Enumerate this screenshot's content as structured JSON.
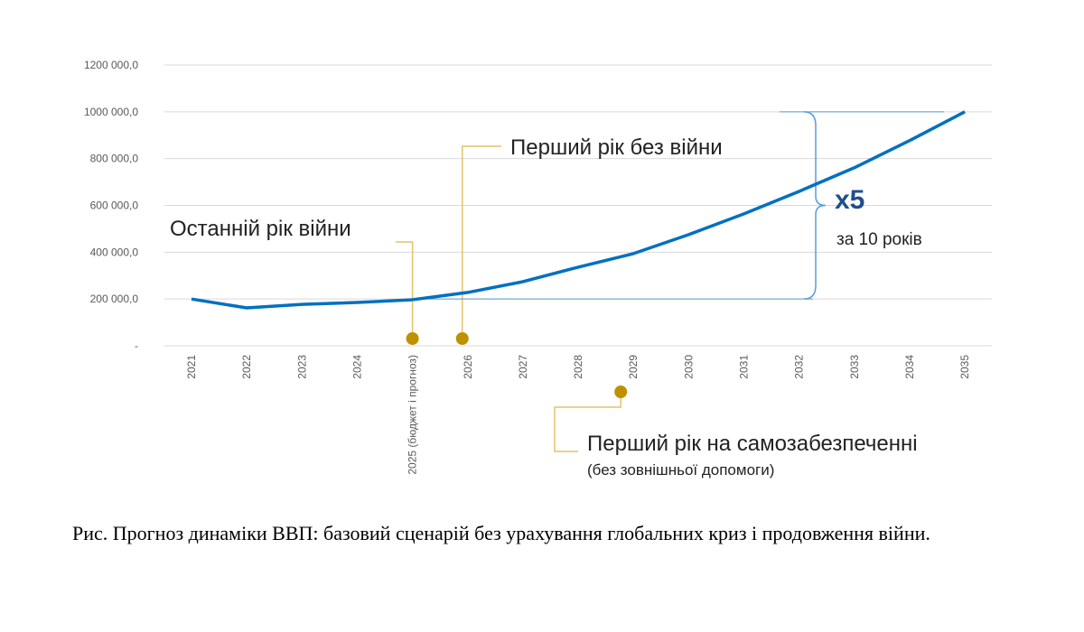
{
  "chart_data": {
    "type": "line",
    "title": "",
    "xlabel": "",
    "ylabel": "",
    "categories": [
      "2021",
      "2022",
      "2023",
      "2024",
      "2025 (бюджет і прогноз)",
      "2026",
      "2027",
      "2028",
      "2029",
      "2030",
      "2031",
      "2032",
      "2033",
      "2034",
      "2035"
    ],
    "series": [
      {
        "name": "ВВП",
        "values": [
          200000,
          162000,
          177000,
          185000,
          197000,
          228000,
          274000,
          336000,
          394000,
          475000,
          564000,
          660000,
          761000,
          877000,
          1000000
        ],
        "color": "#0070C0"
      }
    ],
    "ylim": [
      0,
      1200000
    ],
    "yticks": [
      0,
      200000,
      400000,
      600000,
      800000,
      1000000,
      1200000
    ],
    "ytick_labels": [
      "-",
      "200 000,0",
      "400 000,0",
      "600 000,0",
      "800 000,0",
      "1000 000,0",
      "1200 000,0"
    ],
    "grid": true,
    "annotations": {
      "last_war_year": {
        "text": "Останній рік війни",
        "category_index": 4
      },
      "first_peace_year": {
        "text": "Перший рік без війни",
        "category_index": 5
      },
      "self_sufficiency": {
        "text": "Перший рік на самозабезпеченні",
        "subtext": "(без зовнішньої допомоги)",
        "category_index": 8
      },
      "growth": {
        "multiplier": "x5",
        "text": "за 10 років"
      }
    },
    "marker_color": "#BF9000",
    "callout_color": "#E2C46B"
  },
  "caption": "Рис. Прогноз динаміки ВВП: базовий сценарій без урахування глобальних криз і продовження війни."
}
